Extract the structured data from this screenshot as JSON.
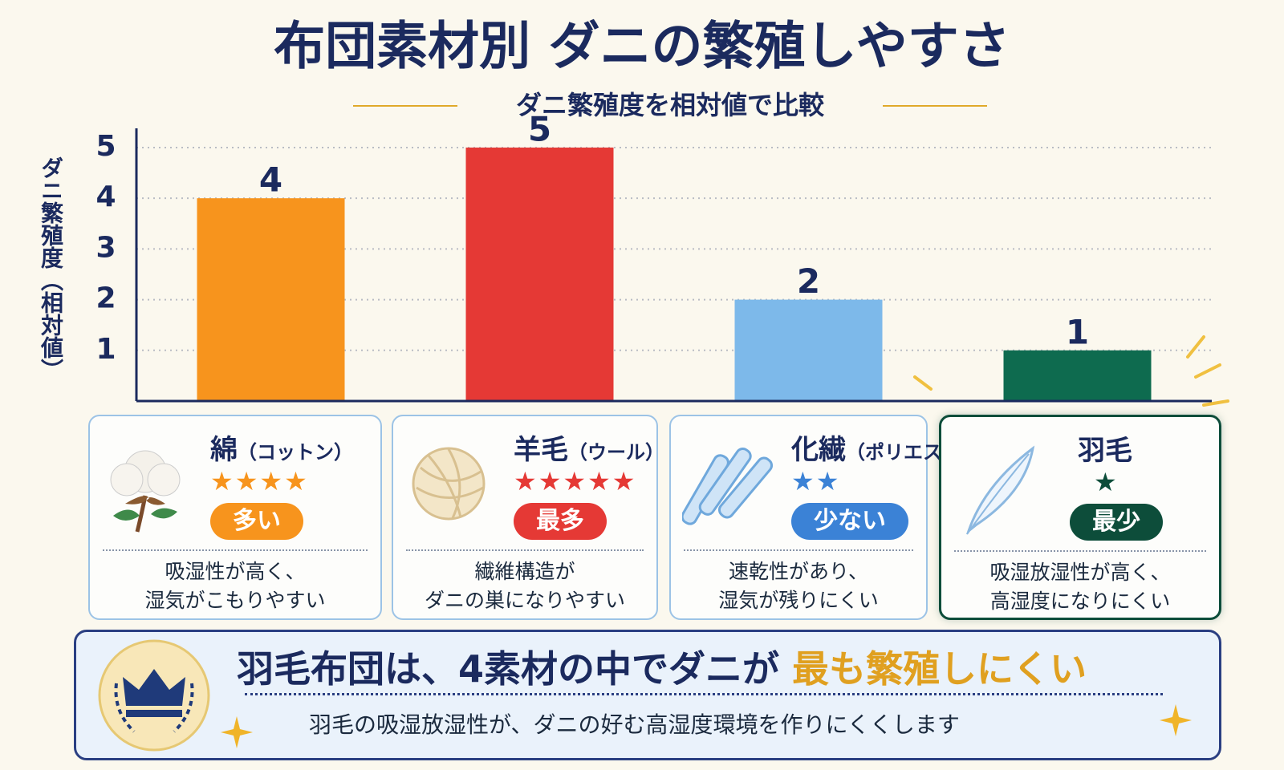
{
  "chart_data": {
    "type": "bar",
    "title": "布団素材別 ダニの繁殖しやすさ",
    "subtitle": "ダニ繁殖度を相対値で比較",
    "y_label": "ダニ繁殖度（相対値）",
    "categories": [
      "綿",
      "羊毛",
      "化繊",
      "羽毛"
    ],
    "values": [
      4,
      5,
      2,
      1
    ],
    "colors": [
      "#f7941d",
      "#e53935",
      "#7db9ea",
      "#0e6b4f"
    ],
    "ylim": [
      0,
      5.3
    ],
    "yticks": [
      1,
      2,
      3,
      4,
      5
    ],
    "grid": true
  },
  "cards": [
    {
      "reading": "（コットン）",
      "stars": "★★★★",
      "badge": "多い",
      "color": "#f7941d",
      "description": [
        "吸湿性が高く、",
        "湿気がこもりやすい"
      ]
    },
    {
      "reading": "（ウール）",
      "stars": "★★★★★",
      "badge": "最多",
      "color": "#e53935",
      "description": [
        "繊維構造が",
        "ダニの巣になりやすい"
      ]
    },
    {
      "reading": "（ポリエステル）",
      "stars": "★★",
      "badge": "少ない",
      "color": "#3b82d6",
      "description": [
        "速乾性があり、",
        "湿気が残りにくい"
      ]
    },
    {
      "reading": "",
      "stars": "★",
      "badge": "最少",
      "color": "#0d4d3a",
      "description": [
        "吸湿放湿性が高く、",
        "高湿度になりにくい"
      ]
    }
  ],
  "summary": {
    "headline": "羽毛布団は、4素材の中でダニが",
    "highlight": "最も繁殖しにくい",
    "note": "羽毛の吸湿放湿性が、ダニの好む高湿度環境を作りにくくします"
  }
}
